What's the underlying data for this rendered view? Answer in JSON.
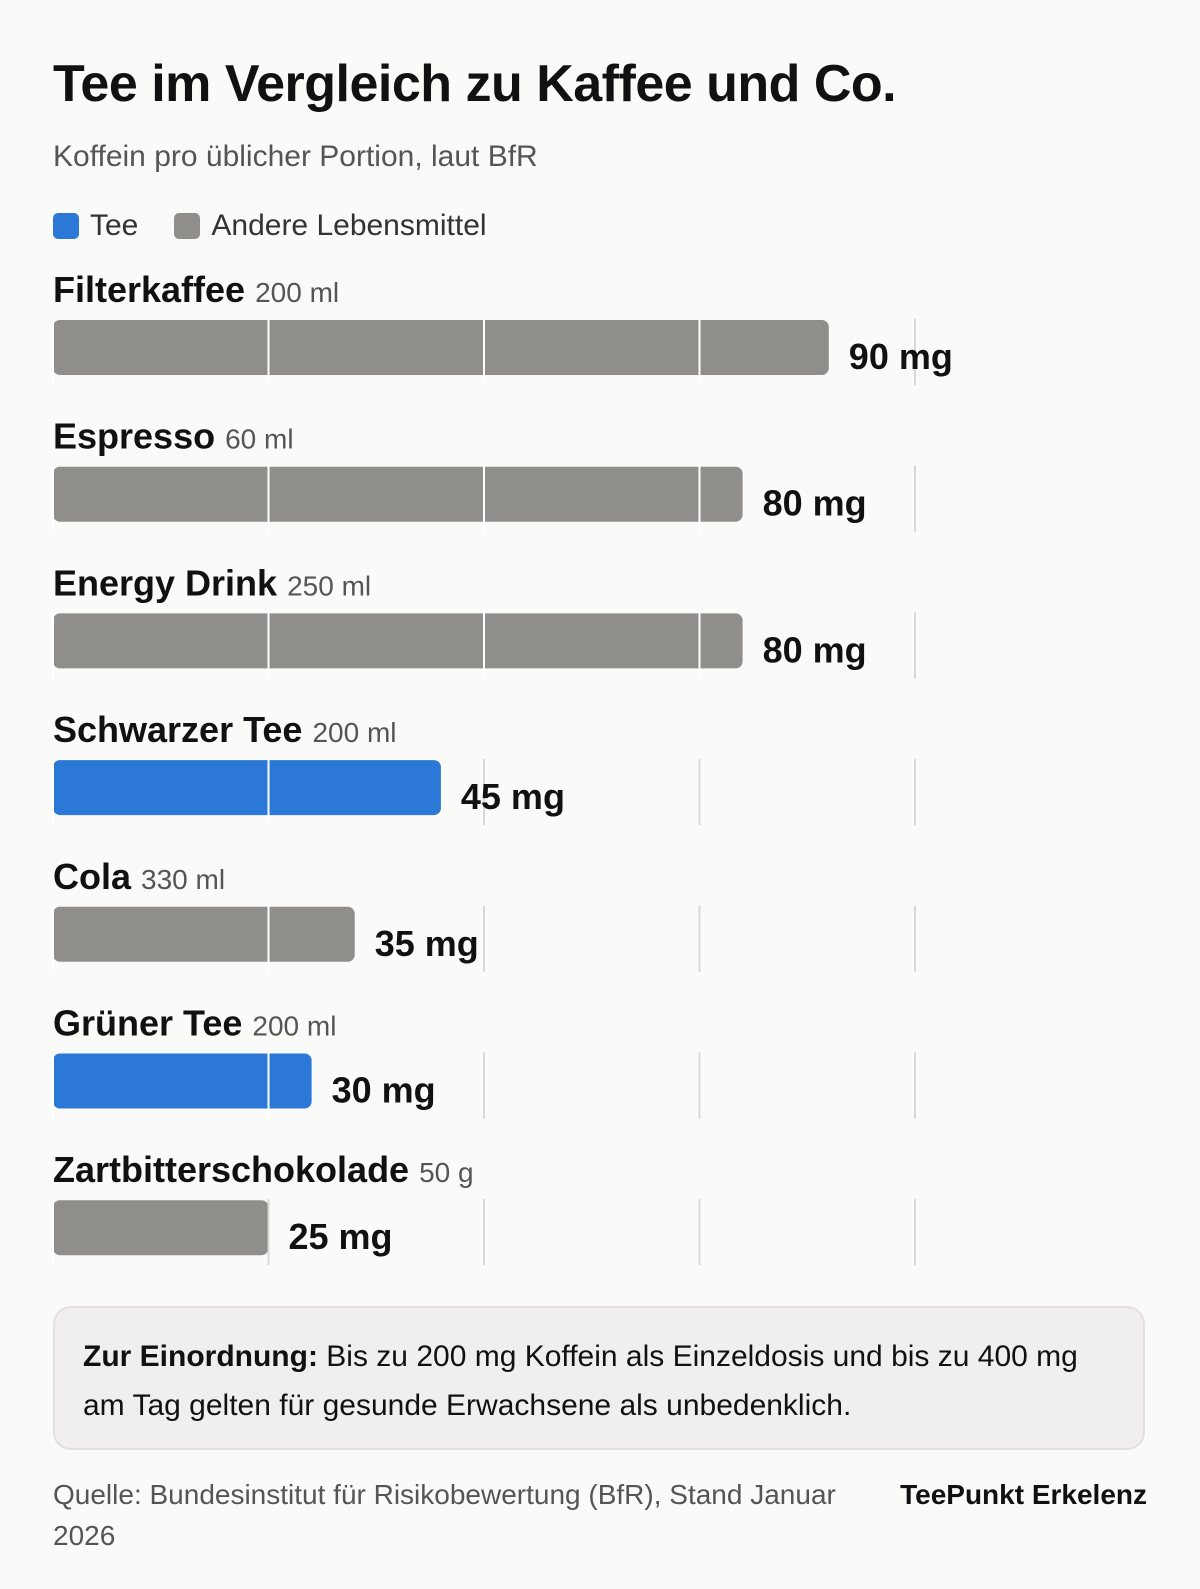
{
  "title": "Tee im Vergleich zu Kaffee und Co.",
  "subtitle": "Koffein pro üblicher Portion, laut BfR",
  "legend": [
    {
      "label": "Tee",
      "color": "#2b78d6"
    },
    {
      "label": "Andere Lebensmittel",
      "color": "#8f8e8a"
    }
  ],
  "chart_data": {
    "type": "bar",
    "orientation": "horizontal",
    "xlim": [
      0,
      100
    ],
    "grid": true,
    "categories": [
      "Filterkaffee",
      "Espresso",
      "Energy Drink",
      "Schwarzer Tee",
      "Cola",
      "Grüner Tee",
      "Zartbitterschokolade"
    ],
    "portions": [
      "200 ml",
      "60 ml",
      "250 ml",
      "200 ml",
      "330 ml",
      "200 ml",
      "50 g"
    ],
    "values": [
      90,
      80,
      80,
      45,
      35,
      30,
      25
    ],
    "value_labels": [
      "90 mg",
      "80 mg",
      "80 mg",
      "45 mg",
      "35 mg",
      "30 mg",
      "25 mg"
    ],
    "groups": [
      "Andere Lebensmittel",
      "Andere Lebensmittel",
      "Andere Lebensmittel",
      "Tee",
      "Andere Lebensmittel",
      "Tee",
      "Andere Lebensmittel"
    ],
    "unit": "mg"
  },
  "note": {
    "label": "Zur Einordnung:",
    "text": "Bis zu 200 mg Koffein als Einzeldosis und bis zu 400 mg am Tag gelten für gesunde Erwachsene als unbedenklich."
  },
  "source": "Quelle: Bundesinstitut für Risikobewertung (BfR), Stand Januar 2026",
  "brand": "TeePunkt Erkelenz"
}
